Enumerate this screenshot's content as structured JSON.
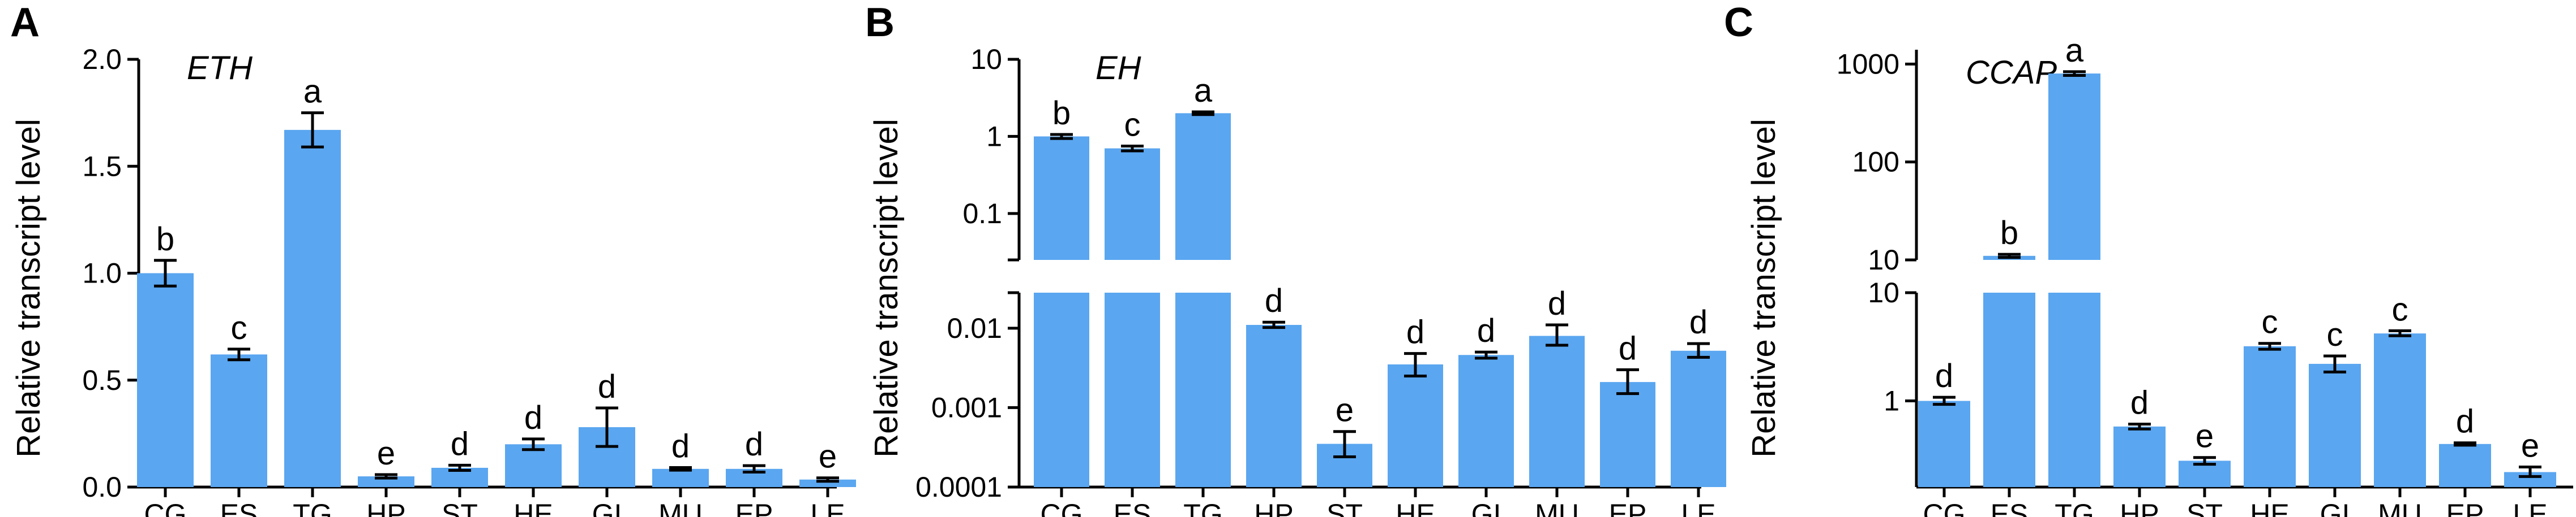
{
  "colors": {
    "bar": "#5aa6f0",
    "axis": "#000000"
  },
  "chart_data": [
    {
      "panel": "A",
      "type": "bar",
      "gene": "ETH",
      "ylabel": "Relative transcript level",
      "scale": "linear",
      "ylim": [
        0,
        2.0
      ],
      "yticks": [
        "0.0",
        "0.5",
        "1.0",
        "1.5",
        "2.0"
      ],
      "categories": [
        "CG",
        "ES",
        "TG",
        "HP",
        "ST",
        "HE",
        "GI",
        "MU",
        "EP",
        "LE"
      ],
      "values": [
        1.0,
        0.62,
        1.67,
        0.05,
        0.09,
        0.2,
        0.28,
        0.085,
        0.085,
        0.035
      ],
      "errors": [
        0.06,
        0.025,
        0.08,
        0.008,
        0.012,
        0.025,
        0.09,
        0.006,
        0.015,
        0.008
      ],
      "letters": [
        "b",
        "c",
        "a",
        "e",
        "d",
        "d",
        "d",
        "d",
        "d",
        "e"
      ]
    },
    {
      "panel": "B",
      "type": "bar",
      "gene": "EH",
      "ylabel": "Relative transcript level",
      "scale": "log-broken",
      "upper": {
        "ylim": [
          0.025,
          10
        ],
        "yticks": [
          "0.1",
          "1",
          "10"
        ]
      },
      "lower": {
        "ylim": [
          0.0001,
          0.028
        ],
        "yticks": [
          "0.0001",
          "0.001",
          "0.01"
        ]
      },
      "categories": [
        "CG",
        "ES",
        "TG",
        "HP",
        "ST",
        "HE",
        "GI",
        "MU",
        "EP",
        "LE"
      ],
      "values": [
        1.0,
        0.7,
        2.0,
        0.011,
        0.00035,
        0.0035,
        0.0046,
        0.008,
        0.0021,
        0.0052
      ],
      "err_lo": [
        0.94,
        0.65,
        1.92,
        0.0102,
        0.00024,
        0.0025,
        0.0042,
        0.0061,
        0.0015,
        0.0043
      ],
      "err_hi": [
        1.06,
        0.75,
        2.08,
        0.0119,
        0.0005,
        0.0048,
        0.005,
        0.011,
        0.003,
        0.0064
      ],
      "letters": [
        "b",
        "c",
        "a",
        "d",
        "e",
        "d",
        "d",
        "d",
        "d",
        "d"
      ]
    },
    {
      "panel": "C",
      "type": "bar",
      "gene": "CCAP",
      "ylabel": "Relative transcript level",
      "scale": "log-broken",
      "upper": {
        "ylim": [
          10,
          1400
        ],
        "yticks": [
          "10",
          "100",
          "1000"
        ]
      },
      "lower": {
        "ylim": [
          0.16,
          10
        ],
        "yticks": [
          "1",
          "10"
        ]
      },
      "categories": [
        "CG",
        "ES",
        "TG",
        "HP",
        "ST",
        "HE",
        "GI",
        "MU",
        "EP",
        "LE"
      ],
      "values": [
        1.0,
        11.0,
        800,
        0.58,
        0.28,
        3.2,
        2.2,
        4.2,
        0.4,
        0.22
      ],
      "err_lo": [
        0.93,
        10.6,
        765,
        0.55,
        0.26,
        3.0,
        1.85,
        4.0,
        0.39,
        0.2
      ],
      "err_hi": [
        1.08,
        11.4,
        835,
        0.61,
        0.3,
        3.4,
        2.6,
        4.45,
        0.41,
        0.245
      ],
      "letters": [
        "d",
        "b",
        "a",
        "d",
        "e",
        "c",
        "c",
        "c",
        "d",
        "e"
      ]
    }
  ]
}
